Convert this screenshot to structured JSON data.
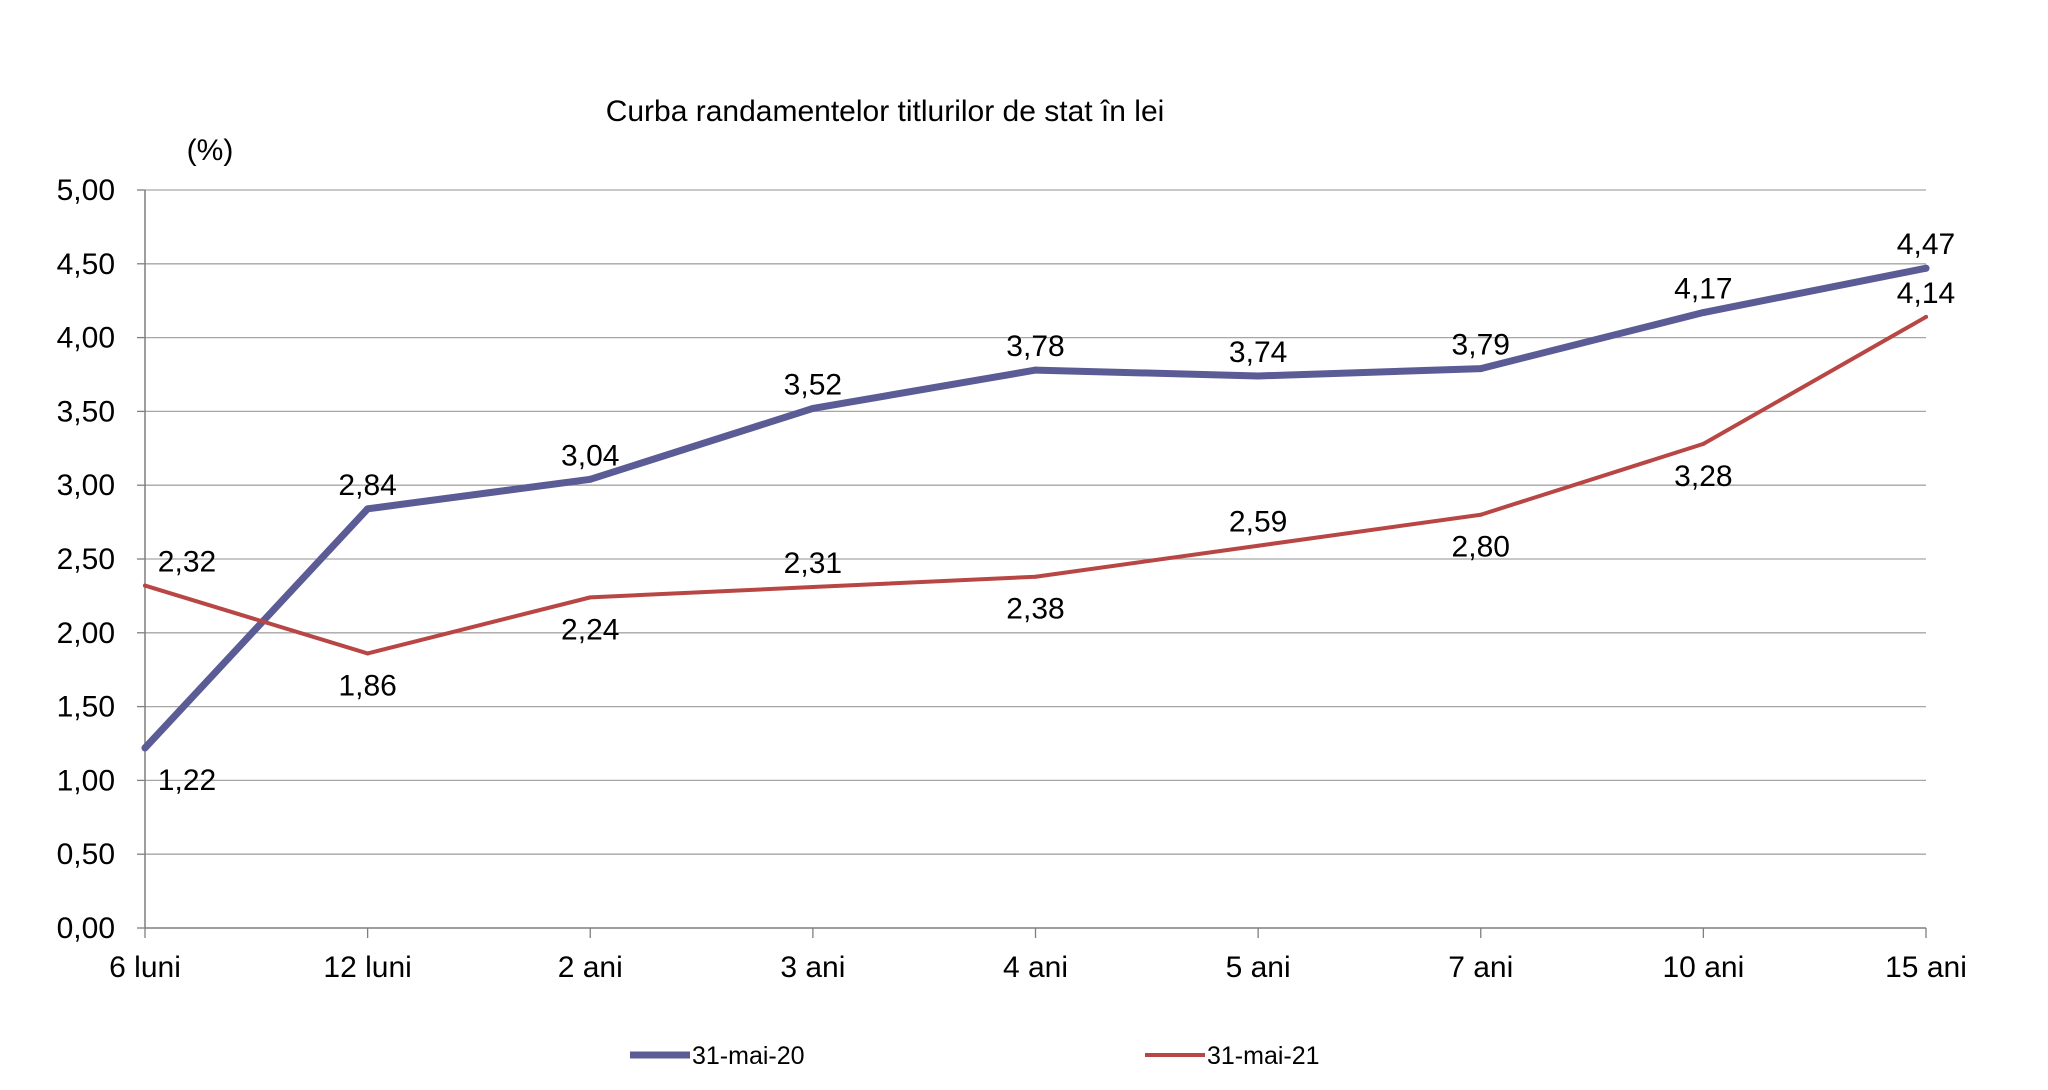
{
  "chart_data": {
    "type": "line",
    "title": "Curba randamentelor titlurilor de stat în lei",
    "ylabel": "(%)",
    "xlabel": "",
    "categories": [
      "6 luni",
      "12 luni",
      "2 ani",
      "3 ani",
      "4 ani",
      "5 ani",
      "7 ani",
      "10 ani",
      "15 ani"
    ],
    "ylim": [
      0,
      5
    ],
    "yticks": [
      0,
      0.5,
      1,
      1.5,
      2,
      2.5,
      3,
      3.5,
      4,
      4.5,
      5
    ],
    "ytick_labels": [
      "0,00",
      "0,50",
      "1,00",
      "1,50",
      "2,00",
      "2,50",
      "3,00",
      "3,50",
      "4,00",
      "4,50",
      "5,00"
    ],
    "grid": true,
    "legend_position": "bottom",
    "series": [
      {
        "name": "31-mai-20",
        "color": "#5b5b96",
        "values": [
          1.22,
          2.84,
          3.04,
          3.52,
          3.78,
          3.74,
          3.79,
          4.17,
          4.47
        ],
        "labels": [
          "1,22",
          "2,84",
          "3,04",
          "3,52",
          "3,78",
          "3,74",
          "3,79",
          "4,17",
          "4,47"
        ]
      },
      {
        "name": "31-mai-21",
        "color": "#b84644",
        "values": [
          2.32,
          1.86,
          2.24,
          2.31,
          2.38,
          2.59,
          2.8,
          3.28,
          4.14
        ],
        "labels": [
          "2,32",
          "1,86",
          "2,24",
          "2,31",
          "2,38",
          "2,59",
          "2,80",
          "3,28",
          "4,14"
        ]
      }
    ]
  }
}
